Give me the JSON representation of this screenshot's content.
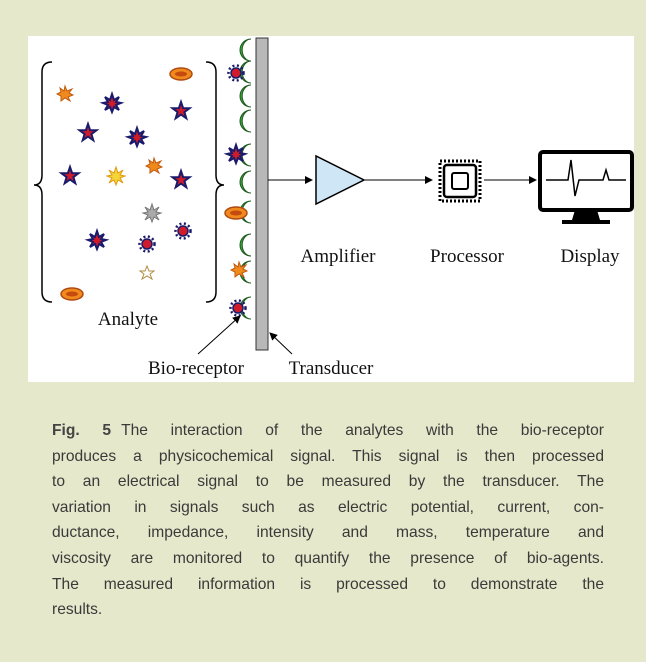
{
  "figure": {
    "labels": {
      "analyte": "Analyte",
      "bio_receptor": "Bio-receptor",
      "transducer": "Transducer",
      "amplifier": "Amplifier",
      "processor": "Processor",
      "display": "Display"
    }
  },
  "caption": {
    "label": "Fig. 5",
    "lines": [
      "The interaction of the analytes with the bio-receptor",
      "produces a physicochemical signal. This signal is then processed",
      "to an electrical signal to be measured by the transducer. The",
      "variation in signals such as electric potential, current, con-",
      "ductance, impedance, intensity and mass, temperature and",
      "viscosity are monitored to quantify the presence of bio-agents.",
      "The measured information is processed to demonstrate the",
      "results."
    ]
  }
}
